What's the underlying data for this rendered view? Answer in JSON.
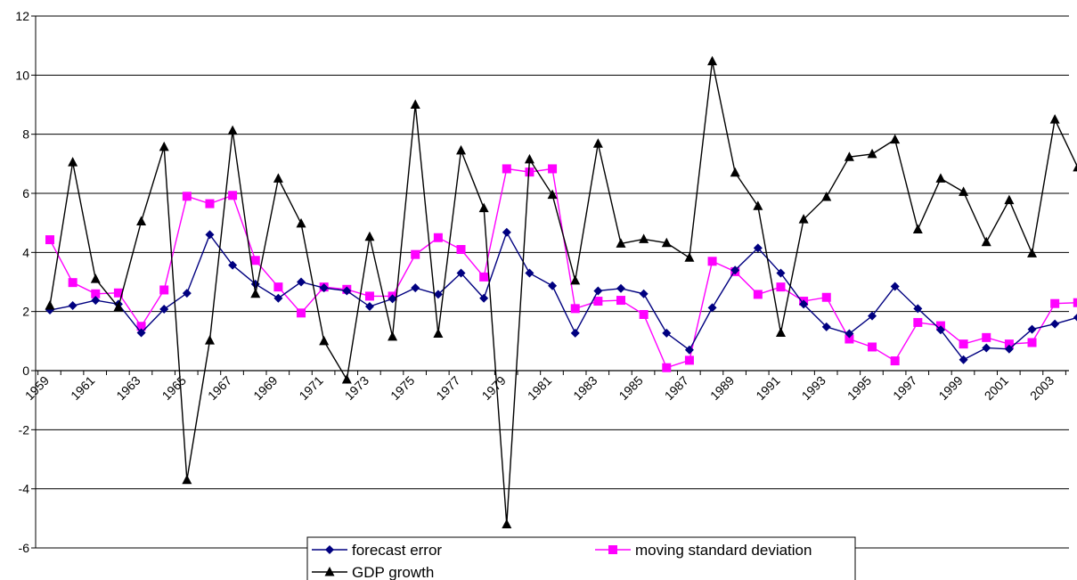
{
  "chart_data": {
    "type": "line",
    "title": "",
    "xlabel": "",
    "ylabel": "",
    "ylim": [
      -6,
      12
    ],
    "yticks": [
      -6,
      -4,
      -2,
      0,
      2,
      4,
      6,
      8,
      10,
      12
    ],
    "grid": true,
    "legend_position": "bottom",
    "x": [
      1959,
      1960,
      1961,
      1962,
      1963,
      1964,
      1965,
      1966,
      1967,
      1968,
      1969,
      1970,
      1971,
      1972,
      1973,
      1974,
      1975,
      1976,
      1977,
      1978,
      1979,
      1980,
      1981,
      1982,
      1983,
      1984,
      1985,
      1986,
      1987,
      1988,
      1989,
      1990,
      1991,
      1992,
      1993,
      1994,
      1995,
      1996,
      1997,
      1998,
      1999,
      2000,
      2001,
      2002,
      2003,
      2004
    ],
    "x_tick_labels": [
      "1959",
      "1961",
      "1963",
      "1965",
      "1967",
      "1969",
      "1971",
      "1973",
      "1975",
      "1977",
      "1979",
      "1981",
      "1983",
      "1985",
      "1987",
      "1989",
      "1991",
      "1993",
      "1995",
      "1997",
      "1999",
      "2001",
      "2003"
    ],
    "series": [
      {
        "name": "forecast error",
        "color": "#000080",
        "marker": "diamond",
        "values": [
          2.05,
          2.2,
          2.38,
          2.25,
          1.28,
          2.08,
          2.62,
          4.6,
          3.57,
          2.93,
          2.45,
          3.0,
          2.8,
          2.7,
          2.17,
          2.43,
          2.8,
          2.58,
          3.3,
          2.45,
          4.68,
          3.3,
          2.87,
          1.27,
          2.7,
          2.78,
          2.6,
          1.27,
          0.7,
          2.13,
          3.4,
          4.15,
          3.3,
          2.25,
          1.48,
          1.25,
          1.85,
          2.85,
          2.1,
          1.38,
          0.37,
          0.77,
          0.73,
          1.4,
          1.58,
          1.8
        ]
      },
      {
        "name": "moving standard deviation",
        "color": "#ff00ff",
        "marker": "square",
        "values": [
          4.43,
          2.98,
          2.6,
          2.63,
          1.5,
          2.73,
          5.9,
          5.65,
          5.93,
          3.73,
          2.83,
          1.95,
          2.83,
          2.75,
          2.52,
          2.52,
          3.93,
          4.5,
          4.1,
          3.17,
          6.83,
          6.72,
          6.83,
          2.1,
          2.35,
          2.38,
          1.9,
          0.1,
          0.35,
          3.7,
          3.35,
          2.58,
          2.83,
          2.35,
          2.48,
          1.07,
          0.8,
          0.33,
          1.63,
          1.52,
          0.9,
          1.12,
          0.9,
          0.95,
          2.27,
          2.3
        ]
      },
      {
        "name": "GDP growth",
        "color": "#000000",
        "marker": "triangle",
        "values": [
          2.2,
          7.05,
          3.1,
          2.15,
          5.05,
          7.57,
          -3.7,
          1.02,
          8.12,
          2.6,
          6.5,
          4.98,
          1.0,
          -0.3,
          4.53,
          1.15,
          9.0,
          1.25,
          7.45,
          5.5,
          -5.2,
          7.15,
          5.95,
          3.05,
          7.68,
          4.3,
          4.45,
          4.32,
          3.82,
          10.47,
          6.7,
          5.57,
          1.28,
          5.12,
          5.88,
          7.23,
          7.33,
          7.82,
          4.78,
          6.5,
          6.05,
          4.35,
          5.77,
          3.97,
          8.5,
          6.88
        ]
      }
    ]
  }
}
